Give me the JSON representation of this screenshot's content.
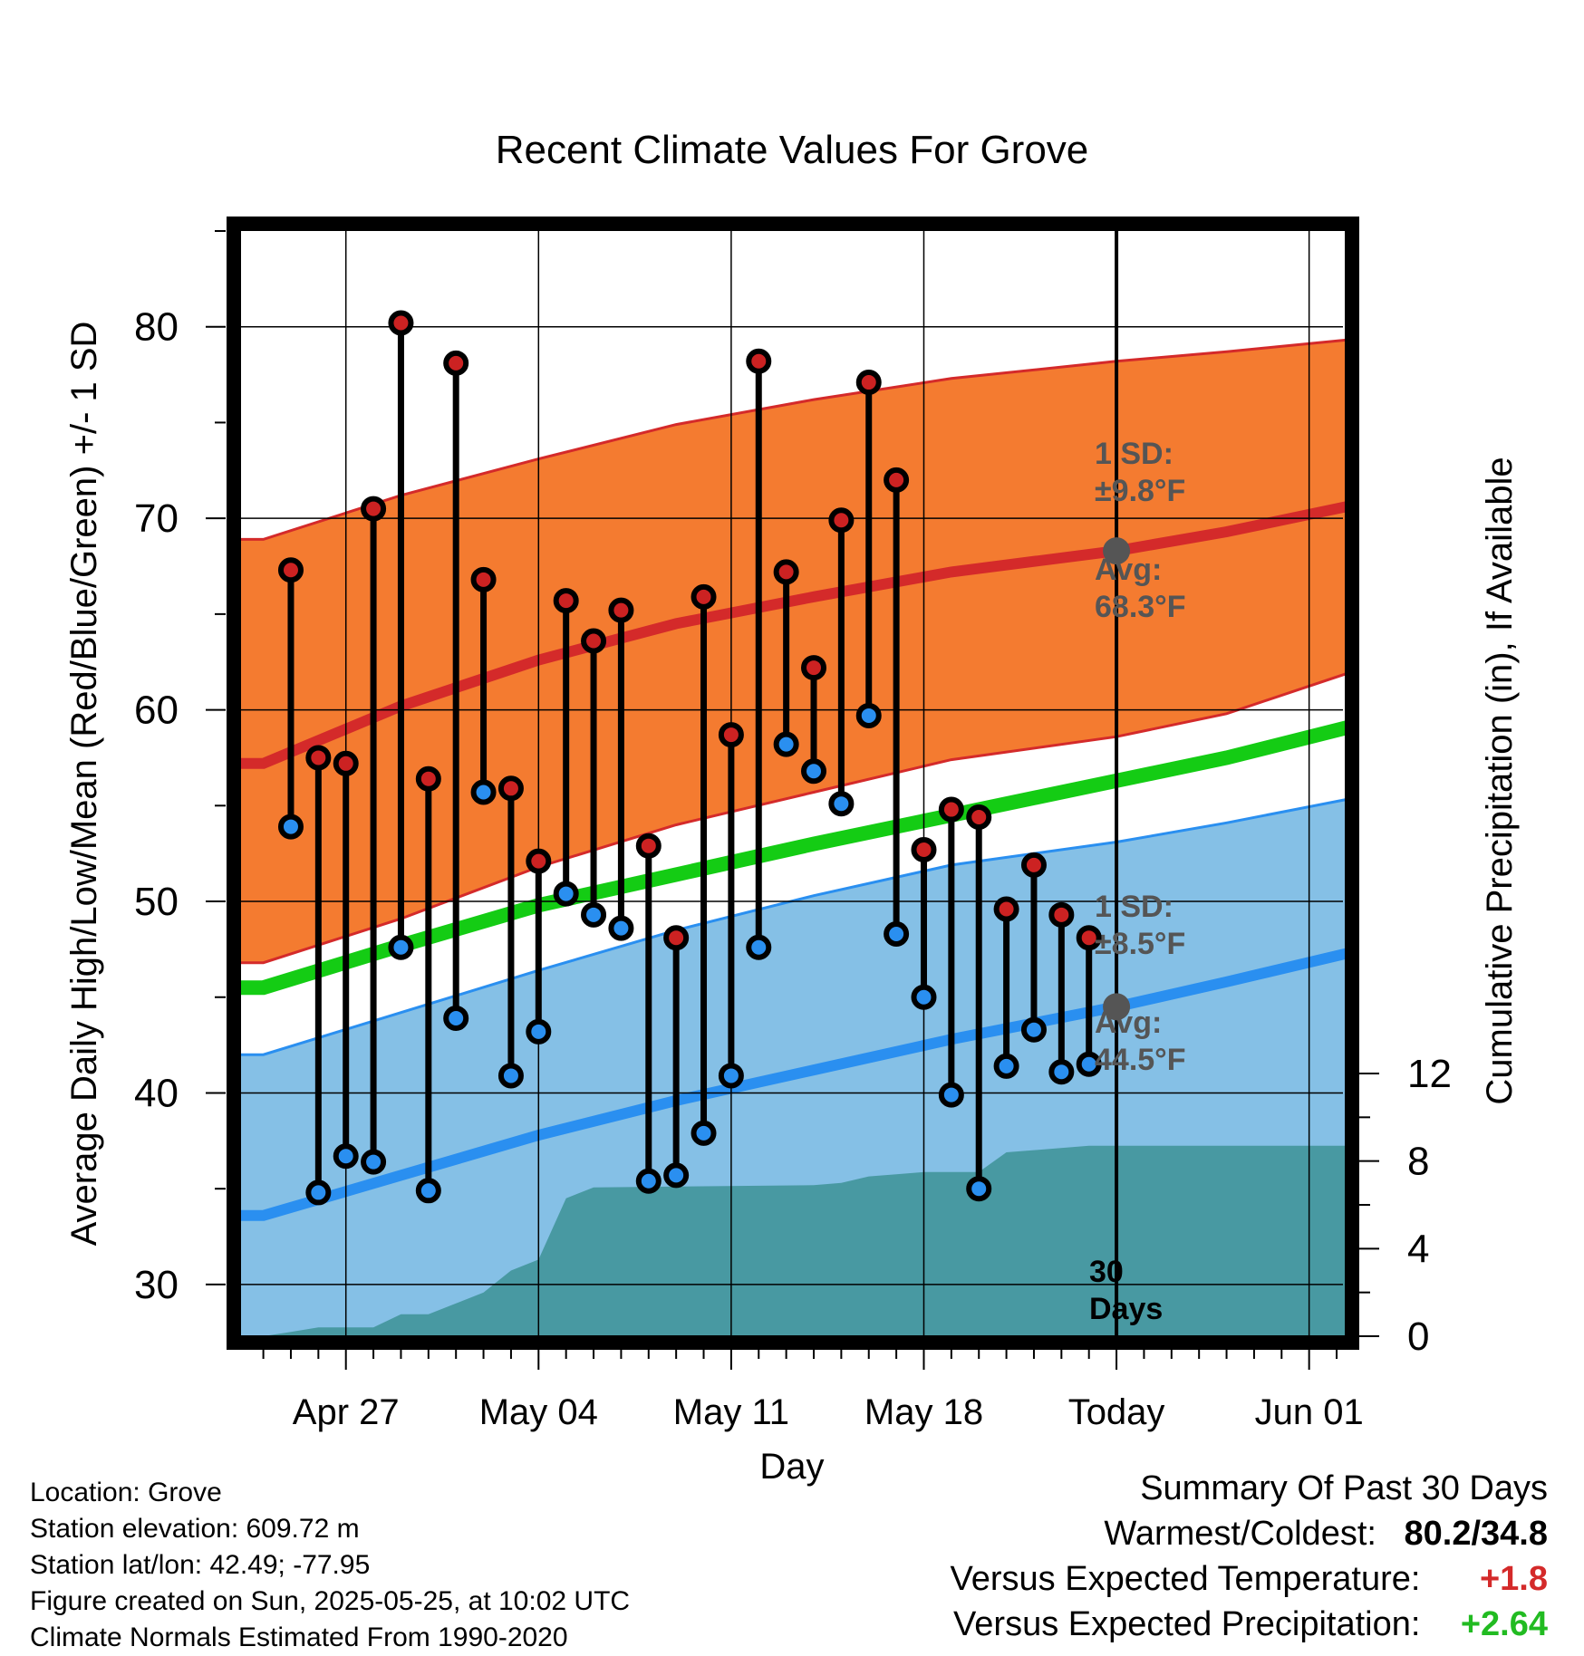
{
  "title": "Recent Climate Values For Grove",
  "xlabel": "Day",
  "ylabel_left": "Average Daily High/Low/Mean (Red/Blue/Green) +/- 1 SD",
  "ylabel_right": "Cumulative Precipitation (in), If Available",
  "today_label": "30\nDays",
  "annotations": {
    "high_sd": "1 SD:\n±9.8°F",
    "high_avg": "Avg:\n68.3°F",
    "low_sd": "1 SD:\n±8.5°F",
    "low_avg": "Avg:\n44.5°F"
  },
  "info": {
    "location": "Location: Grove",
    "elevation": "Station elevation: 609.72 m",
    "latlon": "Station lat/lon: 42.49; -77.95",
    "created": "Figure created on Sun, 2025-05-25, at 10:02 UTC",
    "normals": "Climate Normals Estimated From 1990-2020"
  },
  "summary": {
    "heading": "Summary Of Past 30 Days",
    "warm_cold_label": "Warmest/Coldest:",
    "warm_cold_value": "80.2/34.8",
    "temp_label": "Versus Expected Temperature:",
    "temp_value": "+1.8",
    "precip_label": "Versus Expected Precipitation:",
    "precip_value": "+2.64"
  },
  "colors": {
    "high_band": "#f47b30",
    "high_line": "#d42a2a",
    "low_band": "#85c0e6",
    "low_line": "#2a8ff0",
    "mean_line": "#14cc14",
    "precip": "#4899a2",
    "high_dot": "#cc2222",
    "low_dot": "#2a8ff0",
    "temp_anomaly": "#d42a2a",
    "precip_anomaly": "#22bb22"
  },
  "chart_data": {
    "type": "line",
    "x_ticks": [
      {
        "day": 3,
        "label": "Apr 27"
      },
      {
        "day": 10,
        "label": "May 04"
      },
      {
        "day": 17,
        "label": "May 11"
      },
      {
        "day": 24,
        "label": "May 18"
      },
      {
        "day": 31,
        "label": "Today"
      },
      {
        "day": 38,
        "label": "Jun 01"
      }
    ],
    "xlim": [
      -0.5,
      40
    ],
    "ylim_left": [
      27.3,
      85
    ],
    "ylim_right": [
      0,
      12
    ],
    "left_ticks": [
      30,
      40,
      50,
      60,
      70,
      80
    ],
    "right_ticks": [
      0,
      4,
      8,
      12
    ],
    "today_day": 31,
    "normals": {
      "days": [
        0,
        5,
        10,
        15,
        20,
        25,
        31,
        35,
        40
      ],
      "high_avg": [
        57.2,
        60.2,
        62.6,
        64.5,
        65.9,
        67.2,
        68.3,
        69.3,
        70.8
      ],
      "high_upper": [
        68.9,
        71.2,
        73.1,
        74.9,
        76.2,
        77.3,
        78.2,
        78.7,
        79.4
      ],
      "high_lower": [
        46.8,
        49.1,
        51.8,
        54.0,
        55.7,
        57.4,
        58.6,
        59.8,
        62.2
      ],
      "mean": [
        45.5,
        47.7,
        49.8,
        51.4,
        53.0,
        54.5,
        56.3,
        57.5,
        59.3
      ],
      "low_avg": [
        33.6,
        35.7,
        37.8,
        39.6,
        41.2,
        42.8,
        44.5,
        45.8,
        47.5
      ],
      "low_upper": [
        42.0,
        44.2,
        46.4,
        48.5,
        50.3,
        51.9,
        53.1,
        54.1,
        55.5
      ],
      "low_lower": [
        27.3,
        27.3,
        27.3,
        27.3,
        27.3,
        27.3,
        27.3,
        27.3,
        27.3
      ]
    },
    "observations": {
      "days": [
        1,
        2,
        3,
        4,
        5,
        6,
        7,
        8,
        9,
        10,
        11,
        12,
        13,
        14,
        15,
        16,
        17,
        18,
        19,
        20,
        21,
        22,
        23,
        24,
        25,
        26,
        27,
        28,
        29,
        30
      ],
      "high": [
        67.3,
        57.5,
        57.2,
        70.5,
        80.2,
        56.4,
        78.1,
        66.8,
        55.9,
        52.1,
        65.7,
        63.6,
        65.2,
        52.9,
        48.1,
        65.9,
        58.7,
        78.2,
        67.2,
        62.2,
        69.9,
        77.1,
        72.0,
        52.7,
        54.8,
        54.4,
        49.6,
        51.9,
        49.3,
        48.1
      ],
      "low": [
        53.9,
        34.8,
        36.7,
        36.4,
        47.6,
        34.9,
        43.9,
        55.7,
        40.9,
        43.2,
        50.4,
        49.3,
        48.6,
        35.4,
        35.7,
        37.9,
        40.9,
        47.6,
        58.2,
        56.8,
        55.1,
        59.7,
        48.3,
        45.0,
        39.9,
        35.0,
        41.4,
        43.3,
        41.1,
        41.5
      ]
    },
    "cumulative_precipitation": {
      "days": [
        0,
        1,
        2,
        4,
        5,
        6,
        7,
        8,
        9,
        10,
        11,
        12,
        20,
        21,
        22,
        23,
        24,
        26,
        27,
        28,
        30,
        40
      ],
      "values": [
        0,
        0.2,
        0.4,
        0.4,
        1.0,
        1.0,
        1.5,
        2.0,
        3.0,
        3.5,
        6.3,
        6.8,
        6.9,
        7.0,
        7.3,
        7.4,
        7.5,
        7.5,
        8.4,
        8.5,
        8.7,
        8.7
      ]
    }
  }
}
